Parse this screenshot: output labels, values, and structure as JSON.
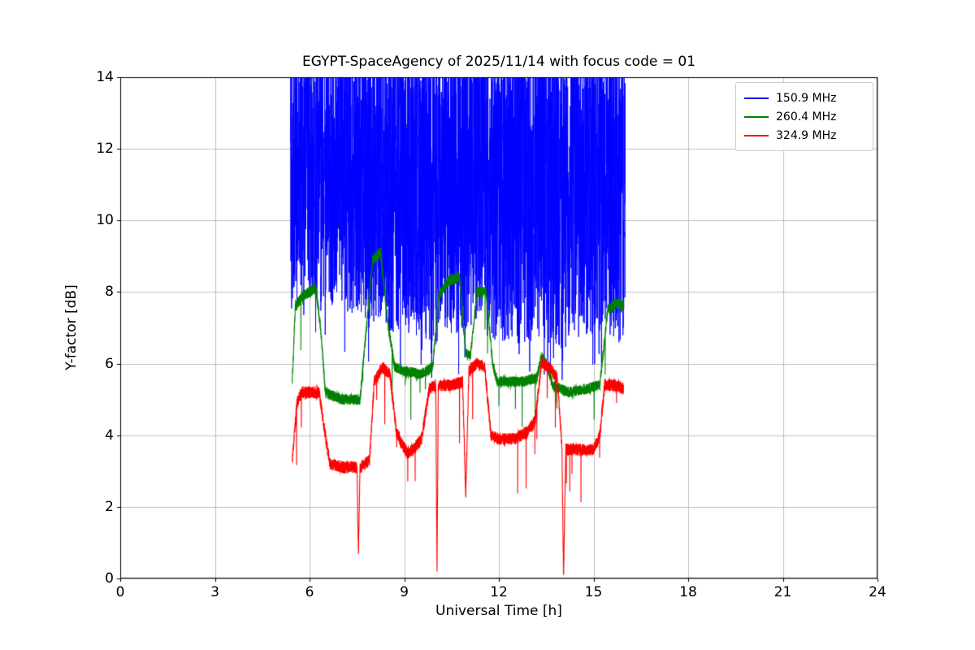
{
  "chart_data": {
    "type": "line",
    "title": "EGYPT-SpaceAgency of 2025/11/14 with focus code = 01",
    "xlabel": "Universal Time [h]",
    "ylabel": "Y-factor [dB]",
    "xlim": [
      0,
      24
    ],
    "ylim": [
      0,
      14
    ],
    "xticks": [
      0,
      3,
      6,
      9,
      12,
      15,
      18,
      21,
      24
    ],
    "yticks": [
      0,
      2,
      4,
      6,
      8,
      10,
      12,
      14
    ],
    "grid": true,
    "grid_color": "#b0b0b0",
    "legend_position": "upper right",
    "time_range": [
      5.4,
      16.0
    ],
    "seed": 42,
    "series": [
      {
        "name": "150.9 MHz",
        "color": "#0000ff",
        "style": "noise-band",
        "points_per_hour": 300,
        "dip_prob": 0.01,
        "dip_mag": 1.0,
        "lower_envelope": [
          [
            5.4,
            7.5
          ],
          [
            6.0,
            7.8
          ],
          [
            6.6,
            7.7
          ],
          [
            7.2,
            7.3
          ],
          [
            7.8,
            7.0
          ],
          [
            8.4,
            6.9
          ],
          [
            9.2,
            6.8
          ],
          [
            10.0,
            6.5
          ],
          [
            10.8,
            6.7
          ],
          [
            11.6,
            6.6
          ],
          [
            12.4,
            6.5
          ],
          [
            13.2,
            6.6
          ],
          [
            14.0,
            6.4
          ],
          [
            14.8,
            6.8
          ],
          [
            15.4,
            6.9
          ],
          [
            16.0,
            6.3
          ]
        ],
        "upper_envelope": [
          [
            5.4,
            15.3
          ],
          [
            16.0,
            15.3
          ]
        ]
      },
      {
        "name": "260.4 MHz",
        "color": "#008000",
        "style": "noisy-line",
        "points_per_hour": 400,
        "noise": 0.15,
        "spike_prob": 0.004,
        "spike_mag": 1.3,
        "keypoints": [
          [
            5.45,
            5.5
          ],
          [
            5.55,
            7.6
          ],
          [
            5.8,
            7.9
          ],
          [
            6.2,
            8.1
          ],
          [
            6.35,
            7.0
          ],
          [
            6.5,
            5.2
          ],
          [
            7.0,
            5.0
          ],
          [
            7.6,
            5.0
          ],
          [
            7.75,
            6.5
          ],
          [
            8.0,
            8.9
          ],
          [
            8.25,
            9.1
          ],
          [
            8.5,
            7.0
          ],
          [
            8.7,
            5.9
          ],
          [
            9.0,
            5.8
          ],
          [
            9.5,
            5.7
          ],
          [
            9.9,
            5.9
          ],
          [
            10.1,
            7.9
          ],
          [
            10.4,
            8.3
          ],
          [
            10.75,
            8.4
          ],
          [
            10.95,
            6.3
          ],
          [
            11.1,
            6.2
          ],
          [
            11.3,
            8.0
          ],
          [
            11.6,
            8.0
          ],
          [
            11.8,
            6.0
          ],
          [
            11.95,
            5.5
          ],
          [
            12.3,
            5.5
          ],
          [
            12.8,
            5.5
          ],
          [
            13.2,
            5.6
          ],
          [
            13.35,
            6.2
          ],
          [
            13.55,
            5.9
          ],
          [
            13.7,
            5.4
          ],
          [
            14.2,
            5.2
          ],
          [
            14.8,
            5.3
          ],
          [
            15.2,
            5.4
          ],
          [
            15.45,
            7.5
          ],
          [
            15.75,
            7.7
          ],
          [
            15.95,
            7.6
          ]
        ]
      },
      {
        "name": "324.9 MHz",
        "color": "#ff0000",
        "style": "noisy-line",
        "points_per_hour": 400,
        "noise": 0.17,
        "spike_prob": 0.006,
        "spike_mag": 1.5,
        "keypoints": [
          [
            5.45,
            3.3
          ],
          [
            5.6,
            4.9
          ],
          [
            5.75,
            5.2
          ],
          [
            6.3,
            5.2
          ],
          [
            6.5,
            4.0
          ],
          [
            6.65,
            3.2
          ],
          [
            7.1,
            3.1
          ],
          [
            7.5,
            3.1
          ],
          [
            7.55,
            0.7
          ],
          [
            7.6,
            3.1
          ],
          [
            7.9,
            3.3
          ],
          [
            8.05,
            5.5
          ],
          [
            8.3,
            5.9
          ],
          [
            8.55,
            5.7
          ],
          [
            8.75,
            4.1
          ],
          [
            8.9,
            3.8
          ],
          [
            9.1,
            3.5
          ],
          [
            9.3,
            3.6
          ],
          [
            9.55,
            3.9
          ],
          [
            9.8,
            5.3
          ],
          [
            10.0,
            5.4
          ],
          [
            10.04,
            0.05
          ],
          [
            10.08,
            5.4
          ],
          [
            10.5,
            5.4
          ],
          [
            10.85,
            5.5
          ],
          [
            10.95,
            2.3
          ],
          [
            11.05,
            5.8
          ],
          [
            11.3,
            6.0
          ],
          [
            11.55,
            5.9
          ],
          [
            11.75,
            4.0
          ],
          [
            12.0,
            3.9
          ],
          [
            12.5,
            3.9
          ],
          [
            12.9,
            4.1
          ],
          [
            13.15,
            4.4
          ],
          [
            13.35,
            6.0
          ],
          [
            13.6,
            5.9
          ],
          [
            13.85,
            5.6
          ],
          [
            14.0,
            3.7
          ],
          [
            14.05,
            0.02
          ],
          [
            14.12,
            3.6
          ],
          [
            14.5,
            3.6
          ],
          [
            15.0,
            3.6
          ],
          [
            15.2,
            4.0
          ],
          [
            15.35,
            5.4
          ],
          [
            15.7,
            5.4
          ],
          [
            15.95,
            5.3
          ]
        ]
      }
    ]
  }
}
